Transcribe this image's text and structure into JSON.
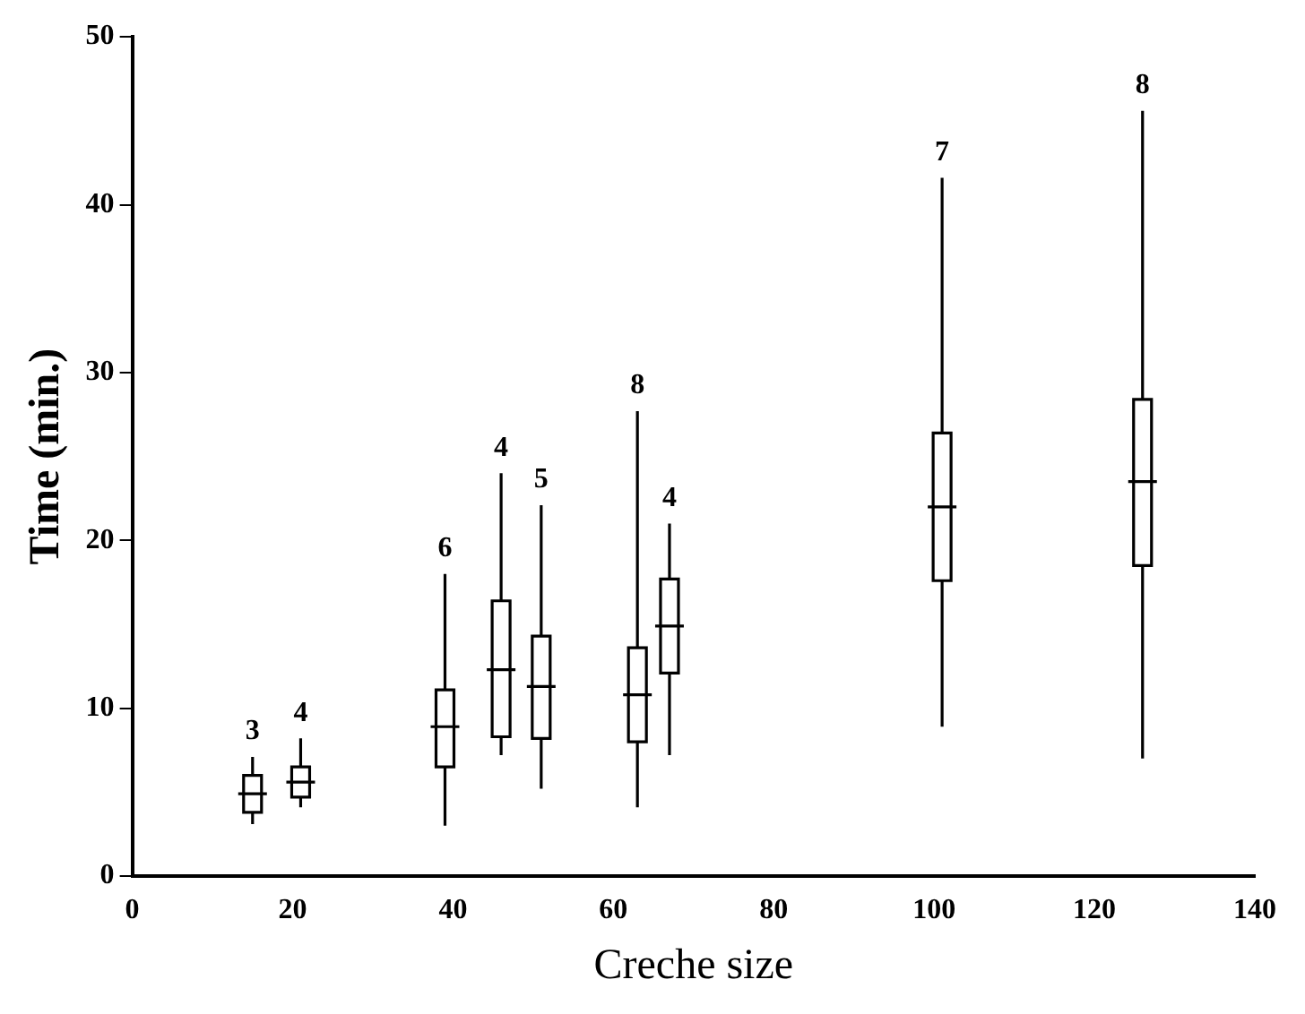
{
  "chart_data": {
    "type": "box",
    "xlabel": "Creche size",
    "ylabel": "Time (min.)",
    "color": "#000000",
    "x": [
      15,
      21,
      39,
      46,
      51,
      63,
      67,
      101,
      126
    ],
    "boxes": [
      {
        "low": 3.1,
        "q1": 3.8,
        "median": 4.9,
        "q3": 6.0,
        "high": 7.1
      },
      {
        "low": 4.1,
        "q1": 4.7,
        "median": 5.6,
        "q3": 6.5,
        "high": 8.2
      },
      {
        "low": 3.0,
        "q1": 6.5,
        "median": 8.9,
        "q3": 11.1,
        "high": 18.0
      },
      {
        "low": 7.2,
        "q1": 8.3,
        "median": 12.3,
        "q3": 16.4,
        "high": 24.0
      },
      {
        "low": 5.2,
        "q1": 8.2,
        "median": 11.3,
        "q3": 14.3,
        "high": 22.1
      },
      {
        "low": 4.1,
        "q1": 8.0,
        "median": 10.8,
        "q3": 13.6,
        "high": 27.7
      },
      {
        "low": 7.2,
        "q1": 12.1,
        "median": 14.9,
        "q3": 17.7,
        "high": 21.0
      },
      {
        "low": 8.9,
        "q1": 17.6,
        "median": 22.0,
        "q3": 26.4,
        "high": 41.6
      },
      {
        "low": 7.0,
        "q1": 18.5,
        "median": 23.5,
        "q3": 28.4,
        "high": 45.6
      }
    ],
    "annotations": [
      "3",
      "4",
      "6",
      "4",
      "5",
      "8",
      "4",
      "7",
      "8"
    ],
    "xlim": [
      0,
      140
    ],
    "xticks": [
      0,
      20,
      40,
      60,
      80,
      100,
      120,
      140
    ],
    "ylim": [
      0,
      50
    ],
    "yticks": [
      0,
      10,
      20,
      30,
      40,
      50
    ],
    "grid": false,
    "legend": false
  }
}
